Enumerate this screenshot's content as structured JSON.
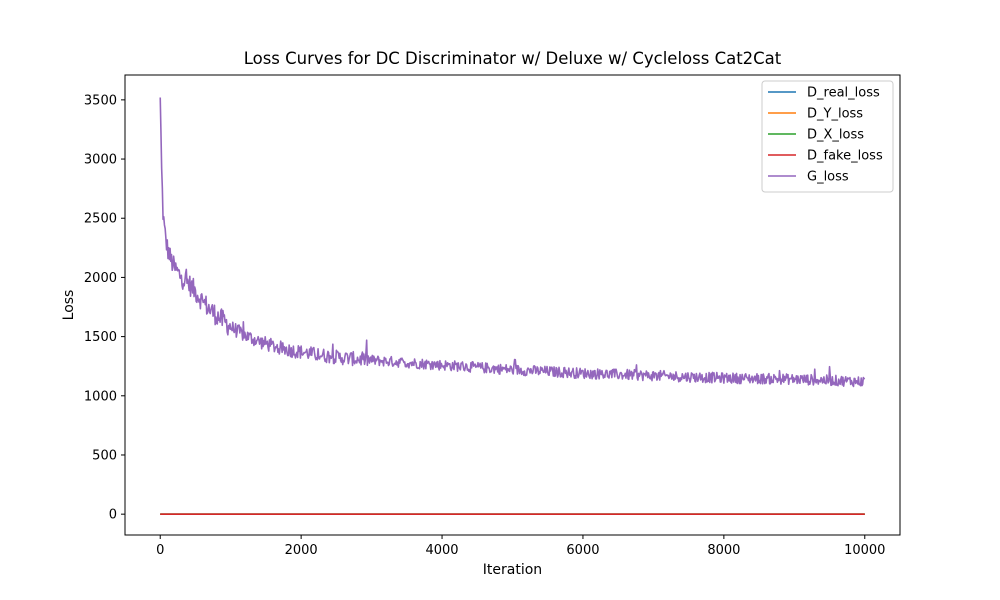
{
  "chart_data": {
    "type": "line",
    "title": "Loss Curves for DC Discriminator w/ Deluxe w/ Cycleloss Cat2Cat",
    "xlabel": "Iteration",
    "ylabel": "Loss",
    "xlim": [
      -500,
      10500
    ],
    "ylim": [
      -176,
      3710
    ],
    "x_ticks": [
      0,
      2000,
      4000,
      6000,
      8000,
      10000
    ],
    "y_ticks": [
      0,
      500,
      1000,
      1500,
      2000,
      2500,
      3000,
      3500
    ],
    "grid": false,
    "legend_position": "top-right",
    "series": [
      {
        "name": "D_real_loss",
        "color": "#1f77b4",
        "x": [
          0,
          10000
        ],
        "values": [
          0,
          0
        ]
      },
      {
        "name": "D_Y_loss",
        "color": "#ff7f0e",
        "x": [
          0,
          10000
        ],
        "values": [
          0,
          0
        ]
      },
      {
        "name": "D_X_loss",
        "color": "#2ca02c",
        "x": [
          0,
          10000
        ],
        "values": [
          0,
          0
        ]
      },
      {
        "name": "D_fake_loss",
        "color": "#d62728",
        "x": [
          0,
          10000
        ],
        "values": [
          0,
          0
        ]
      },
      {
        "name": "G_loss",
        "color": "#9467bd",
        "x": [
          0,
          20,
          40,
          60,
          80,
          100,
          150,
          200,
          300,
          400,
          500,
          600,
          700,
          800,
          900,
          1000,
          1200,
          1400,
          1600,
          1800,
          2000,
          2200,
          2400,
          2600,
          2800,
          3000,
          3500,
          4000,
          4500,
          5000,
          5500,
          6000,
          6500,
          7000,
          7500,
          8000,
          8500,
          9000,
          9500,
          10000
        ],
        "values": [
          3520,
          2900,
          2550,
          2400,
          2320,
          2250,
          2150,
          2080,
          2000,
          1950,
          1880,
          1800,
          1730,
          1680,
          1630,
          1580,
          1510,
          1460,
          1420,
          1390,
          1370,
          1350,
          1335,
          1320,
          1310,
          1300,
          1280,
          1260,
          1240,
          1220,
          1205,
          1190,
          1180,
          1170,
          1160,
          1150,
          1145,
          1140,
          1130,
          1120
        ]
      }
    ]
  }
}
